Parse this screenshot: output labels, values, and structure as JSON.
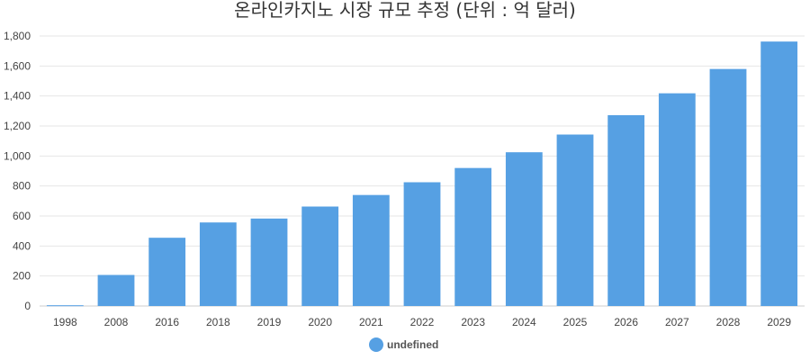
{
  "chart_data": {
    "type": "bar",
    "title": "온라인카지노 시장 규모 추정 (단위 : 억 달러)",
    "xlabel": "",
    "ylabel": "",
    "categories": [
      "1998",
      "2008",
      "2016",
      "2018",
      "2019",
      "2020",
      "2021",
      "2022",
      "2023",
      "2024",
      "2025",
      "2026",
      "2027",
      "2028",
      "2029"
    ],
    "series": [
      {
        "name": "undefined",
        "values": [
          5,
          207,
          455,
          557,
          583,
          663,
          740,
          825,
          920,
          1025,
          1143,
          1272,
          1418,
          1580,
          1763
        ]
      }
    ],
    "ylim": [
      0,
      1800
    ],
    "yticks": [
      0,
      200,
      400,
      600,
      800,
      1000,
      1200,
      1400,
      1600,
      1800
    ],
    "ytick_labels": [
      "0",
      "200",
      "400",
      "600",
      "800",
      "1,000",
      "1,200",
      "1,400",
      "1,600",
      "1,800"
    ],
    "grid": true,
    "legend_position": "bottom",
    "colors": {
      "bar": "#56a0e3",
      "grid": "#e6e6e6",
      "axis": "#cccccc"
    }
  }
}
